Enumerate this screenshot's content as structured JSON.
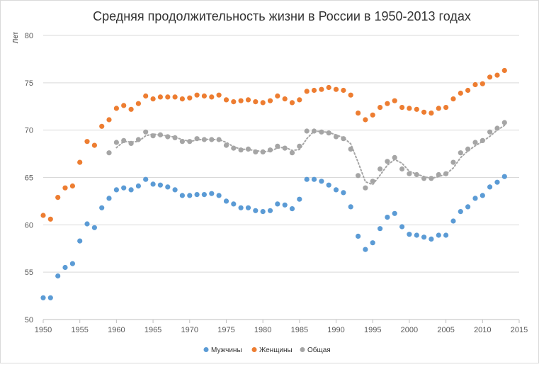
{
  "chart_data": {
    "type": "scatter",
    "title": "Средняя продолжительность жизни в России в 1950-2013 годах",
    "ylabel": "Лет",
    "xlabel": "",
    "xlim": [
      1950,
      2015
    ],
    "ylim": [
      50,
      80
    ],
    "xticks": [
      1950,
      1955,
      1960,
      1965,
      1970,
      1975,
      1980,
      1985,
      1990,
      1995,
      2000,
      2005,
      2010,
      2015
    ],
    "yticks": [
      50,
      55,
      60,
      65,
      70,
      75,
      80
    ],
    "grid": "horizontal",
    "legend_position": "bottom",
    "series": [
      {
        "name": "Мужчины",
        "color": "#5b9bd5",
        "x": [
          1950,
          1951,
          1952,
          1953,
          1954,
          1955,
          1956,
          1957,
          1958,
          1959,
          1960,
          1961,
          1962,
          1963,
          1964,
          1965,
          1966,
          1967,
          1968,
          1969,
          1970,
          1971,
          1972,
          1973,
          1974,
          1975,
          1976,
          1977,
          1978,
          1979,
          1980,
          1981,
          1982,
          1983,
          1984,
          1985,
          1986,
          1987,
          1988,
          1989,
          1990,
          1991,
          1992,
          1993,
          1994,
          1995,
          1996,
          1997,
          1998,
          1999,
          2000,
          2001,
          2002,
          2003,
          2004,
          2005,
          2006,
          2007,
          2008,
          2009,
          2010,
          2011,
          2012,
          2013
        ],
        "y": [
          52.3,
          52.3,
          54.6,
          55.5,
          55.9,
          58.3,
          60.1,
          59.7,
          61.8,
          62.8,
          63.7,
          63.9,
          63.7,
          64.1,
          64.8,
          64.3,
          64.2,
          64.0,
          63.7,
          63.1,
          63.1,
          63.2,
          63.2,
          63.3,
          63.1,
          62.5,
          62.2,
          61.8,
          61.8,
          61.5,
          61.4,
          61.5,
          62.2,
          62.1,
          61.7,
          62.7,
          64.8,
          64.8,
          64.6,
          64.2,
          63.7,
          63.4,
          61.9,
          58.8,
          57.4,
          58.1,
          59.6,
          60.8,
          61.2,
          59.8,
          59.0,
          58.9,
          58.7,
          58.5,
          58.9,
          58.9,
          60.4,
          61.4,
          61.9,
          62.8,
          63.1,
          64.0,
          64.5,
          65.1
        ]
      },
      {
        "name": "Женщины",
        "color": "#ed7d31",
        "x": [
          1950,
          1951,
          1952,
          1953,
          1954,
          1955,
          1956,
          1957,
          1958,
          1959,
          1960,
          1961,
          1962,
          1963,
          1964,
          1965,
          1966,
          1967,
          1968,
          1969,
          1970,
          1971,
          1972,
          1973,
          1974,
          1975,
          1976,
          1977,
          1978,
          1979,
          1980,
          1981,
          1982,
          1983,
          1984,
          1985,
          1986,
          1987,
          1988,
          1989,
          1990,
          1991,
          1992,
          1993,
          1994,
          1995,
          1996,
          1997,
          1998,
          1999,
          2000,
          2001,
          2002,
          2003,
          2004,
          2005,
          2006,
          2007,
          2008,
          2009,
          2010,
          2011,
          2012,
          2013
        ],
        "y": [
          61.0,
          60.6,
          62.9,
          63.9,
          64.1,
          66.6,
          68.8,
          68.4,
          70.4,
          71.1,
          72.3,
          72.6,
          72.2,
          72.8,
          73.6,
          73.3,
          73.5,
          73.5,
          73.5,
          73.3,
          73.4,
          73.7,
          73.6,
          73.5,
          73.7,
          73.2,
          73.0,
          73.1,
          73.2,
          73.0,
          72.9,
          73.1,
          73.6,
          73.3,
          72.9,
          73.2,
          74.1,
          74.2,
          74.3,
          74.5,
          74.3,
          74.2,
          73.7,
          71.8,
          71.1,
          71.6,
          72.4,
          72.8,
          73.1,
          72.4,
          72.3,
          72.2,
          71.9,
          71.8,
          72.3,
          72.4,
          73.3,
          73.9,
          74.2,
          74.8,
          74.9,
          75.6,
          75.8,
          76.3
        ]
      },
      {
        "name": "Общая",
        "color": "#a5a5a5",
        "trendline": "dotted",
        "x": [
          1959,
          1960,
          1961,
          1962,
          1963,
          1964,
          1965,
          1966,
          1967,
          1968,
          1969,
          1970,
          1971,
          1972,
          1973,
          1974,
          1975,
          1976,
          1977,
          1978,
          1979,
          1980,
          1981,
          1982,
          1983,
          1984,
          1985,
          1986,
          1987,
          1988,
          1989,
          1990,
          1991,
          1992,
          1993,
          1994,
          1995,
          1996,
          1997,
          1998,
          1999,
          2000,
          2001,
          2002,
          2003,
          2004,
          2005,
          2006,
          2007,
          2008,
          2009,
          2010,
          2011,
          2012,
          2013
        ],
        "y": [
          67.6,
          68.7,
          68.9,
          68.6,
          69.0,
          69.8,
          69.4,
          69.5,
          69.3,
          69.2,
          68.8,
          68.8,
          69.1,
          69.0,
          69.0,
          69.0,
          68.4,
          68.1,
          67.9,
          68.0,
          67.7,
          67.7,
          67.9,
          68.3,
          68.1,
          67.6,
          68.3,
          69.9,
          69.9,
          69.8,
          69.7,
          69.3,
          69.1,
          68.0,
          65.2,
          63.9,
          64.6,
          65.9,
          66.7,
          67.1,
          65.9,
          65.4,
          65.3,
          64.9,
          64.9,
          65.3,
          65.4,
          66.6,
          67.6,
          68.0,
          68.7,
          68.9,
          69.8,
          70.2,
          70.8
        ]
      }
    ]
  }
}
